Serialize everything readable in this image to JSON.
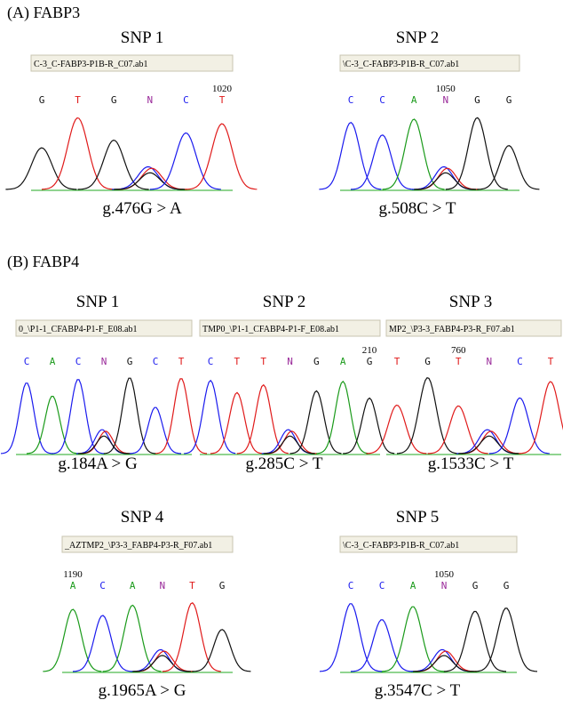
{
  "sections": [
    {
      "label": "(A)  FABP3",
      "panels": [
        {
          "title": "SNP  1",
          "file": "C-3_C-FABP3-P1B-R_C07.ab1",
          "bases": [
            "G",
            "T",
            "G",
            "N",
            "C",
            "T"
          ],
          "position": "1020",
          "variant": "g.476G > A"
        },
        {
          "title": "SNP  2",
          "file": "\\C-3_C-FABP3-P1B-R_C07.ab1",
          "bases": [
            "C",
            "C",
            "A",
            "N",
            "G",
            "G"
          ],
          "position": "1050",
          "variant": "g.508C > T"
        }
      ]
    },
    {
      "label": "(B)  FABP4",
      "panels": [
        {
          "title": "SNP  1",
          "file": "0_\\P1-1_CFABP4-P1-F_E08.ab1",
          "bases": [
            "C",
            "A",
            "C",
            "N",
            "G",
            "C",
            "T"
          ],
          "variant": "g.184A > G"
        },
        {
          "title": "SNP  2",
          "file": "TMP0_\\P1-1_CFABP4-P1-F_E08.ab1",
          "bases": [
            "C",
            "T",
            "T",
            "N",
            "G",
            "A",
            "G"
          ],
          "position": "210",
          "variant": "g.285C > T"
        },
        {
          "title": "SNP  3",
          "file": "MP2_\\P3-3_FABP4-P3-R_F07.ab1",
          "bases": [
            "T",
            "G",
            "T",
            "N",
            "C",
            "T"
          ],
          "position": "760",
          "variant": "g.1533C > T"
        },
        {
          "title": "SNP  4",
          "file": "_AZTMP2_\\P3-3_FABP4-P3-R_F07.ab1",
          "bases": [
            "A",
            "C",
            "A",
            "N",
            "T",
            "G"
          ],
          "position": "1190",
          "variant": "g.1965A > G"
        },
        {
          "title": "SNP  5",
          "file": "\\C-3_C-FABP3-P1B-R_C07.ab1",
          "bases": [
            "C",
            "C",
            "A",
            "N",
            "G",
            "G"
          ],
          "position": "1050",
          "variant": "g.3547C > T"
        }
      ]
    }
  ]
}
